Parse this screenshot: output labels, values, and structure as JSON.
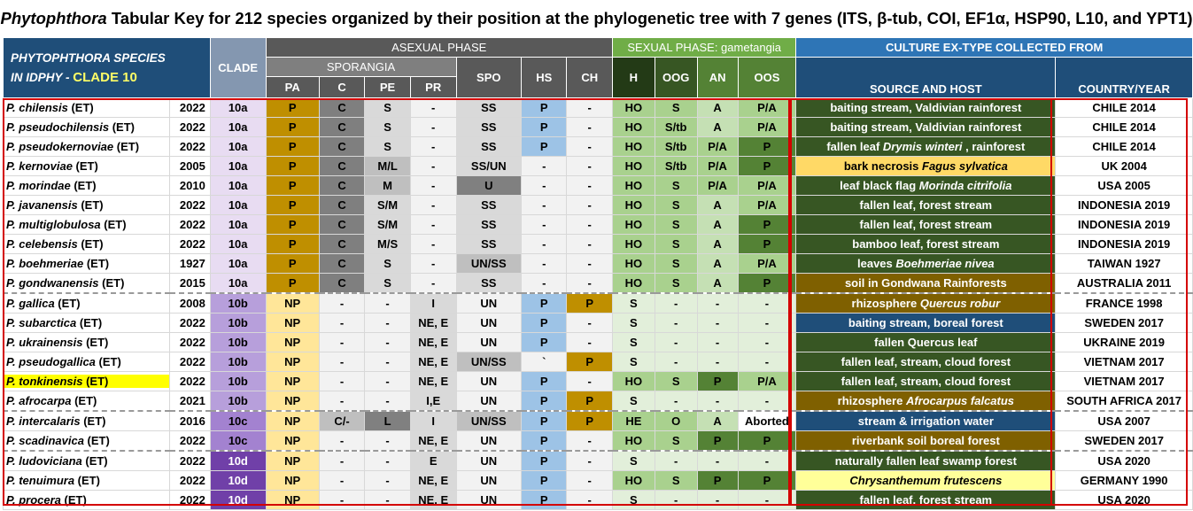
{
  "title": {
    "genus": "Phytophthora",
    "rest": " Tabular Key for 212 species organized by their position at the phylogenetic tree with 7 genes (ITS, β-tub, COI, EF1α, HSP90, L10, and YPT1)"
  },
  "header": {
    "species_line1": "PHYTOPHTHORA  SPECIES",
    "species_line2": "IN IDPHY -",
    "clade_name": "CLADE 10",
    "clade": "CLADE",
    "asexual": "ASEXUAL PHASE",
    "sexual": "SEXUAL PHASE: gametangia",
    "culture": "CULTURE EX-TYPE COLLECTED FROM",
    "sporangia": "SPORANGIA",
    "pa": "PA",
    "c": "C",
    "pe": "PE",
    "pr": "PR",
    "spo": "SPO",
    "hs": "HS",
    "ch": "CH",
    "h": "H",
    "oog": "OOG",
    "an": "AN",
    "oos": "OOS",
    "source": "SOURCE AND HOST",
    "country": "COUNTRY/YEAR"
  },
  "colors": {
    "clade_10a": "#e8dcf2",
    "clade_10b": "#b79fdb",
    "clade_10c": "#a382d0",
    "clade_10d": "#7040a8",
    "source_dark_green": "#3a5a28",
    "source_blue": "#1f4e79",
    "source_brown": "#7f6000",
    "source_yellow": "#ffd966",
    "source_pale_yellow": "#ffff99"
  },
  "rows": [
    {
      "species": "P. chilensis",
      "et": " (ET)",
      "year": "2022",
      "clade": "10a",
      "pa": "P",
      "c": "C",
      "pe": "S",
      "pr": "-",
      "spo": "SS",
      "hs": "P",
      "ch": "-",
      "h": "HO",
      "oog": "S",
      "an": "A",
      "oos": "P/A",
      "source": "baiting stream, Valdivian rainforest",
      "country": "CHILE 2014"
    },
    {
      "species": "P. pseudochilensis",
      "et": " (ET)",
      "year": "2022",
      "clade": "10a",
      "pa": "P",
      "c": "C",
      "pe": "S",
      "pr": "-",
      "spo": "SS",
      "hs": "P",
      "ch": "-",
      "h": "HO",
      "oog": "S/tb",
      "an": "A",
      "oos": "P/A",
      "source": "baiting stream, Valdivian rainforest",
      "country": "CHILE 2014"
    },
    {
      "species": "P. pseudokernoviae",
      "et": " (ET)",
      "year": "2022",
      "clade": "10a",
      "pa": "P",
      "c": "C",
      "pe": "S",
      "pr": "-",
      "spo": "SS",
      "hs": "P",
      "ch": "-",
      "h": "HO",
      "oog": "S/tb",
      "an": "P/A",
      "oos": "P",
      "source": "fallen leaf ",
      "source_i": "Drymis winteri",
      "source_post": " , rainforest",
      "country": "CHILE 2014"
    },
    {
      "species": "P. kernoviae",
      "et": " (ET)",
      "year": "2005",
      "clade": "10a",
      "pa": "P",
      "c": "C",
      "pe": "M/L",
      "pr": "-",
      "spo": "SS/UN",
      "hs": "-",
      "ch": "-",
      "h": "HO",
      "oog": "S/tb",
      "an": "P/A",
      "oos": "P",
      "source": "bark necrosis ",
      "source_i": "Fagus sylvatica",
      "source_post": "",
      "country": "UK 2004"
    },
    {
      "species": "P. morindae",
      "et": " (ET)",
      "year": "2010",
      "clade": "10a",
      "pa": "P",
      "c": "C",
      "pe": "M",
      "pr": "-",
      "spo": "U",
      "hs": "-",
      "ch": "-",
      "h": "HO",
      "oog": "S",
      "an": "P/A",
      "oos": "P/A",
      "source": "leaf black flag ",
      "source_i": "Morinda citrifolia",
      "source_post": "",
      "country": "USA 2005"
    },
    {
      "species": "P. javanensis",
      "et": " (ET)",
      "year": "2022",
      "clade": "10a",
      "pa": "P",
      "c": "C",
      "pe": "S/M",
      "pr": "-",
      "spo": "SS",
      "hs": "-",
      "ch": "-",
      "h": "HO",
      "oog": "S",
      "an": "A",
      "oos": "P/A",
      "source": "fallen leaf, forest stream",
      "country": "INDONESIA 2019"
    },
    {
      "species": "P. multiglobulosa",
      "et": " (ET)",
      "year": "2022",
      "clade": "10a",
      "pa": "P",
      "c": "C",
      "pe": "S/M",
      "pr": "-",
      "spo": "SS",
      "hs": "-",
      "ch": "-",
      "h": "HO",
      "oog": "S",
      "an": "A",
      "oos": "P",
      "source": "fallen leaf, forest stream",
      "country": "INDONESIA 2019"
    },
    {
      "species": "P. celebensis",
      "et": " (ET)",
      "year": "2022",
      "clade": "10a",
      "pa": "P",
      "c": "C",
      "pe": "M/S",
      "pr": "-",
      "spo": "SS",
      "hs": "-",
      "ch": "-",
      "h": "HO",
      "oog": "S",
      "an": "A",
      "oos": "P",
      "source": "bamboo leaf, forest stream",
      "country": "INDONESIA 2019"
    },
    {
      "species": "P. boehmeriae",
      "et": " (ET)",
      "year": "1927",
      "clade": "10a",
      "pa": "P",
      "c": "C",
      "pe": "S",
      "pr": "-",
      "spo": "UN/SS",
      "hs": "-",
      "ch": "-",
      "h": "HO",
      "oog": "S",
      "an": "A",
      "oos": "P/A",
      "source": "leaves ",
      "source_i": "Boehmeriae nivea",
      "source_post": "",
      "country": "TAIWAN 1927"
    },
    {
      "species": "P. gondwanensis",
      "et": " (ET)",
      "year": "2015",
      "clade": "10a",
      "pa": "P",
      "c": "C",
      "pe": "S",
      "pr": "-",
      "spo": "SS",
      "hs": "-",
      "ch": "-",
      "h": "HO",
      "oog": "S",
      "an": "A",
      "oos": "P",
      "source": "soil in Gondwana Rainforests",
      "country": "AUSTRALIA 2011"
    },
    {
      "species": "P. gallica",
      "et": " (ET)",
      "year": "2008",
      "clade": "10b",
      "pa": "NP",
      "c": "-",
      "pe": "-",
      "pr": "I",
      "spo": "UN",
      "hs": "P",
      "ch": "P",
      "h": "S",
      "oog": "-",
      "an": "-",
      "oos": "-",
      "source": "rhizosphere ",
      "source_i": "Quercus robur",
      "source_post": "",
      "country": "FRANCE 1998"
    },
    {
      "species": "P. subarctica",
      "et": " (ET)",
      "year": "2022",
      "clade": "10b",
      "pa": "NP",
      "c": "-",
      "pe": "-",
      "pr": "NE, E",
      "spo": "UN",
      "hs": "P",
      "ch": "-",
      "h": "S",
      "oog": "-",
      "an": "-",
      "oos": "-",
      "source": "baiting stream, boreal forest",
      "country": "SWEDEN 2017"
    },
    {
      "species": "P. ukrainensis",
      "et": " (ET)",
      "year": "2022",
      "clade": "10b",
      "pa": "NP",
      "c": "-",
      "pe": "-",
      "pr": "NE, E",
      "spo": "UN",
      "hs": "P",
      "ch": "-",
      "h": "S",
      "oog": "-",
      "an": "-",
      "oos": "-",
      "source": "fallen Quercus leaf",
      "country": "UKRAINE 2019"
    },
    {
      "species": "P. pseudogallica",
      "et": " (ET)",
      "year": "2022",
      "clade": "10b",
      "pa": "NP",
      "c": "-",
      "pe": "-",
      "pr": "NE, E",
      "spo": "UN/SS",
      "hs": "`",
      "ch": "P",
      "h": "S",
      "oog": "-",
      "an": "-",
      "oos": "-",
      "source": "fallen leaf, stream, cloud forest",
      "country": "VIETNAM 2017"
    },
    {
      "species": "P. tonkinensis",
      "et": " (ET)",
      "year": "2022",
      "clade": "10b",
      "pa": "NP",
      "c": "-",
      "pe": "-",
      "pr": "NE, E",
      "spo": "UN",
      "hs": "P",
      "ch": "-",
      "h": "HO",
      "oog": "S",
      "an": "P",
      "oos": "P/A",
      "source": "fallen leaf, stream, cloud forest",
      "country": "VIETNAM 2017"
    },
    {
      "species": "P. afrocarpa",
      "et": " (ET)",
      "year": "2021",
      "clade": "10b",
      "pa": "NP",
      "c": "-",
      "pe": "-",
      "pr": "I,E",
      "spo": "UN",
      "hs": "P",
      "ch": "P",
      "h": "S",
      "oog": "-",
      "an": "-",
      "oos": "-",
      "source": "rhizosphere ",
      "source_i": "Afrocarpus falcatus",
      "source_post": "",
      "country": "SOUTH AFRICA 2017"
    },
    {
      "species": "P. intercalaris",
      "et": " (ET)",
      "year": "2016",
      "clade": "10c",
      "pa": "NP",
      "c": "C/-",
      "pe": "L",
      "pr": "I",
      "spo": "UN/SS",
      "hs": "P",
      "ch": "P",
      "h": "HE",
      "oog": "O",
      "an": "A",
      "oos": "Aborted",
      "source": "stream & irrigation water",
      "country": "USA 2007"
    },
    {
      "species": "P. scadinavica",
      "et": " (ET)",
      "year": "2022",
      "clade": "10c",
      "pa": "NP",
      "c": "-",
      "pe": "-",
      "pr": "NE, E",
      "spo": "UN",
      "hs": "P",
      "ch": "-",
      "h": "HO",
      "oog": "S",
      "an": "P",
      "oos": "P",
      "source": "riverbank soil boreal forest",
      "country": "SWEDEN 2017"
    },
    {
      "species": "P. ludoviciana",
      "et": " (ET)",
      "year": "2022",
      "clade": "10d",
      "pa": "NP",
      "c": "-",
      "pe": "-",
      "pr": "E",
      "spo": "UN",
      "hs": "P",
      "ch": "-",
      "h": "S",
      "oog": "-",
      "an": "-",
      "oos": "-",
      "source": "naturally fallen leaf swamp forest",
      "country": "USA 2020"
    },
    {
      "species": "P. tenuimura",
      "et": " (ET)",
      "year": "2022",
      "clade": "10d",
      "pa": "NP",
      "c": "-",
      "pe": "-",
      "pr": "NE, E",
      "spo": "UN",
      "hs": "P",
      "ch": "-",
      "h": "HO",
      "oog": "S",
      "an": "P",
      "oos": "P",
      "source": "",
      "source_i": "Chrysanthemum frutescens",
      "source_post": "",
      "country": "GERMANY 1990"
    },
    {
      "species": "P. procera",
      "et": " (ET)",
      "year": "2022",
      "clade": "10d",
      "pa": "NP",
      "c": "-",
      "pe": "-",
      "pr": "NE, E",
      "spo": "UN",
      "hs": "P",
      "ch": "-",
      "h": "S",
      "oog": "-",
      "an": "-",
      "oos": "-",
      "source": "fallen leaf, forest stream",
      "country": "USA 2020"
    }
  ]
}
